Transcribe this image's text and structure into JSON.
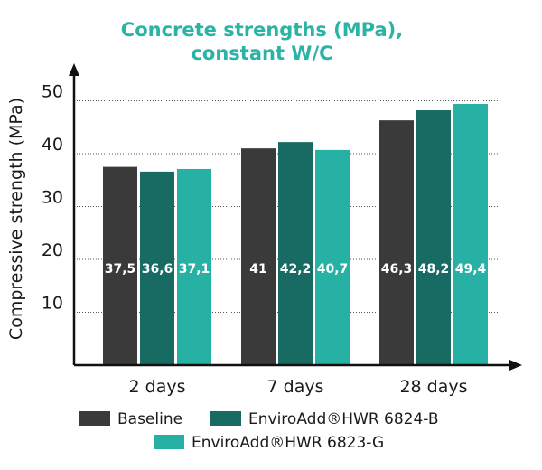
{
  "chart_data": {
    "type": "bar",
    "title": [
      "Concrete strengths (MPa),",
      "constant W/C"
    ],
    "xlabel": "",
    "ylabel": "Compressive strength (MPa)",
    "ylim": [
      0,
      55
    ],
    "yticks": [
      10,
      20,
      30,
      40,
      50
    ],
    "grid": true,
    "legend_position": "bottom",
    "categories": [
      "2 days",
      "7 days",
      "28 days"
    ],
    "series": [
      {
        "name": "Baseline",
        "color": "#3b3a3a",
        "values": [
          37.5,
          41,
          46.3
        ],
        "labels": [
          "37,5",
          "41",
          "46,3"
        ]
      },
      {
        "name": "EnviroAdd®HWR 6824-B",
        "color": "#176b62",
        "values": [
          36.6,
          42.2,
          48.2
        ],
        "labels": [
          "36,6",
          "42,2",
          "48,2"
        ]
      },
      {
        "name": "EnviroAdd®HWR 6823-G",
        "color": "#27b1a4",
        "values": [
          37.1,
          40.7,
          49.4
        ],
        "labels": [
          "37,1",
          "40,7",
          "49,4"
        ]
      }
    ]
  }
}
